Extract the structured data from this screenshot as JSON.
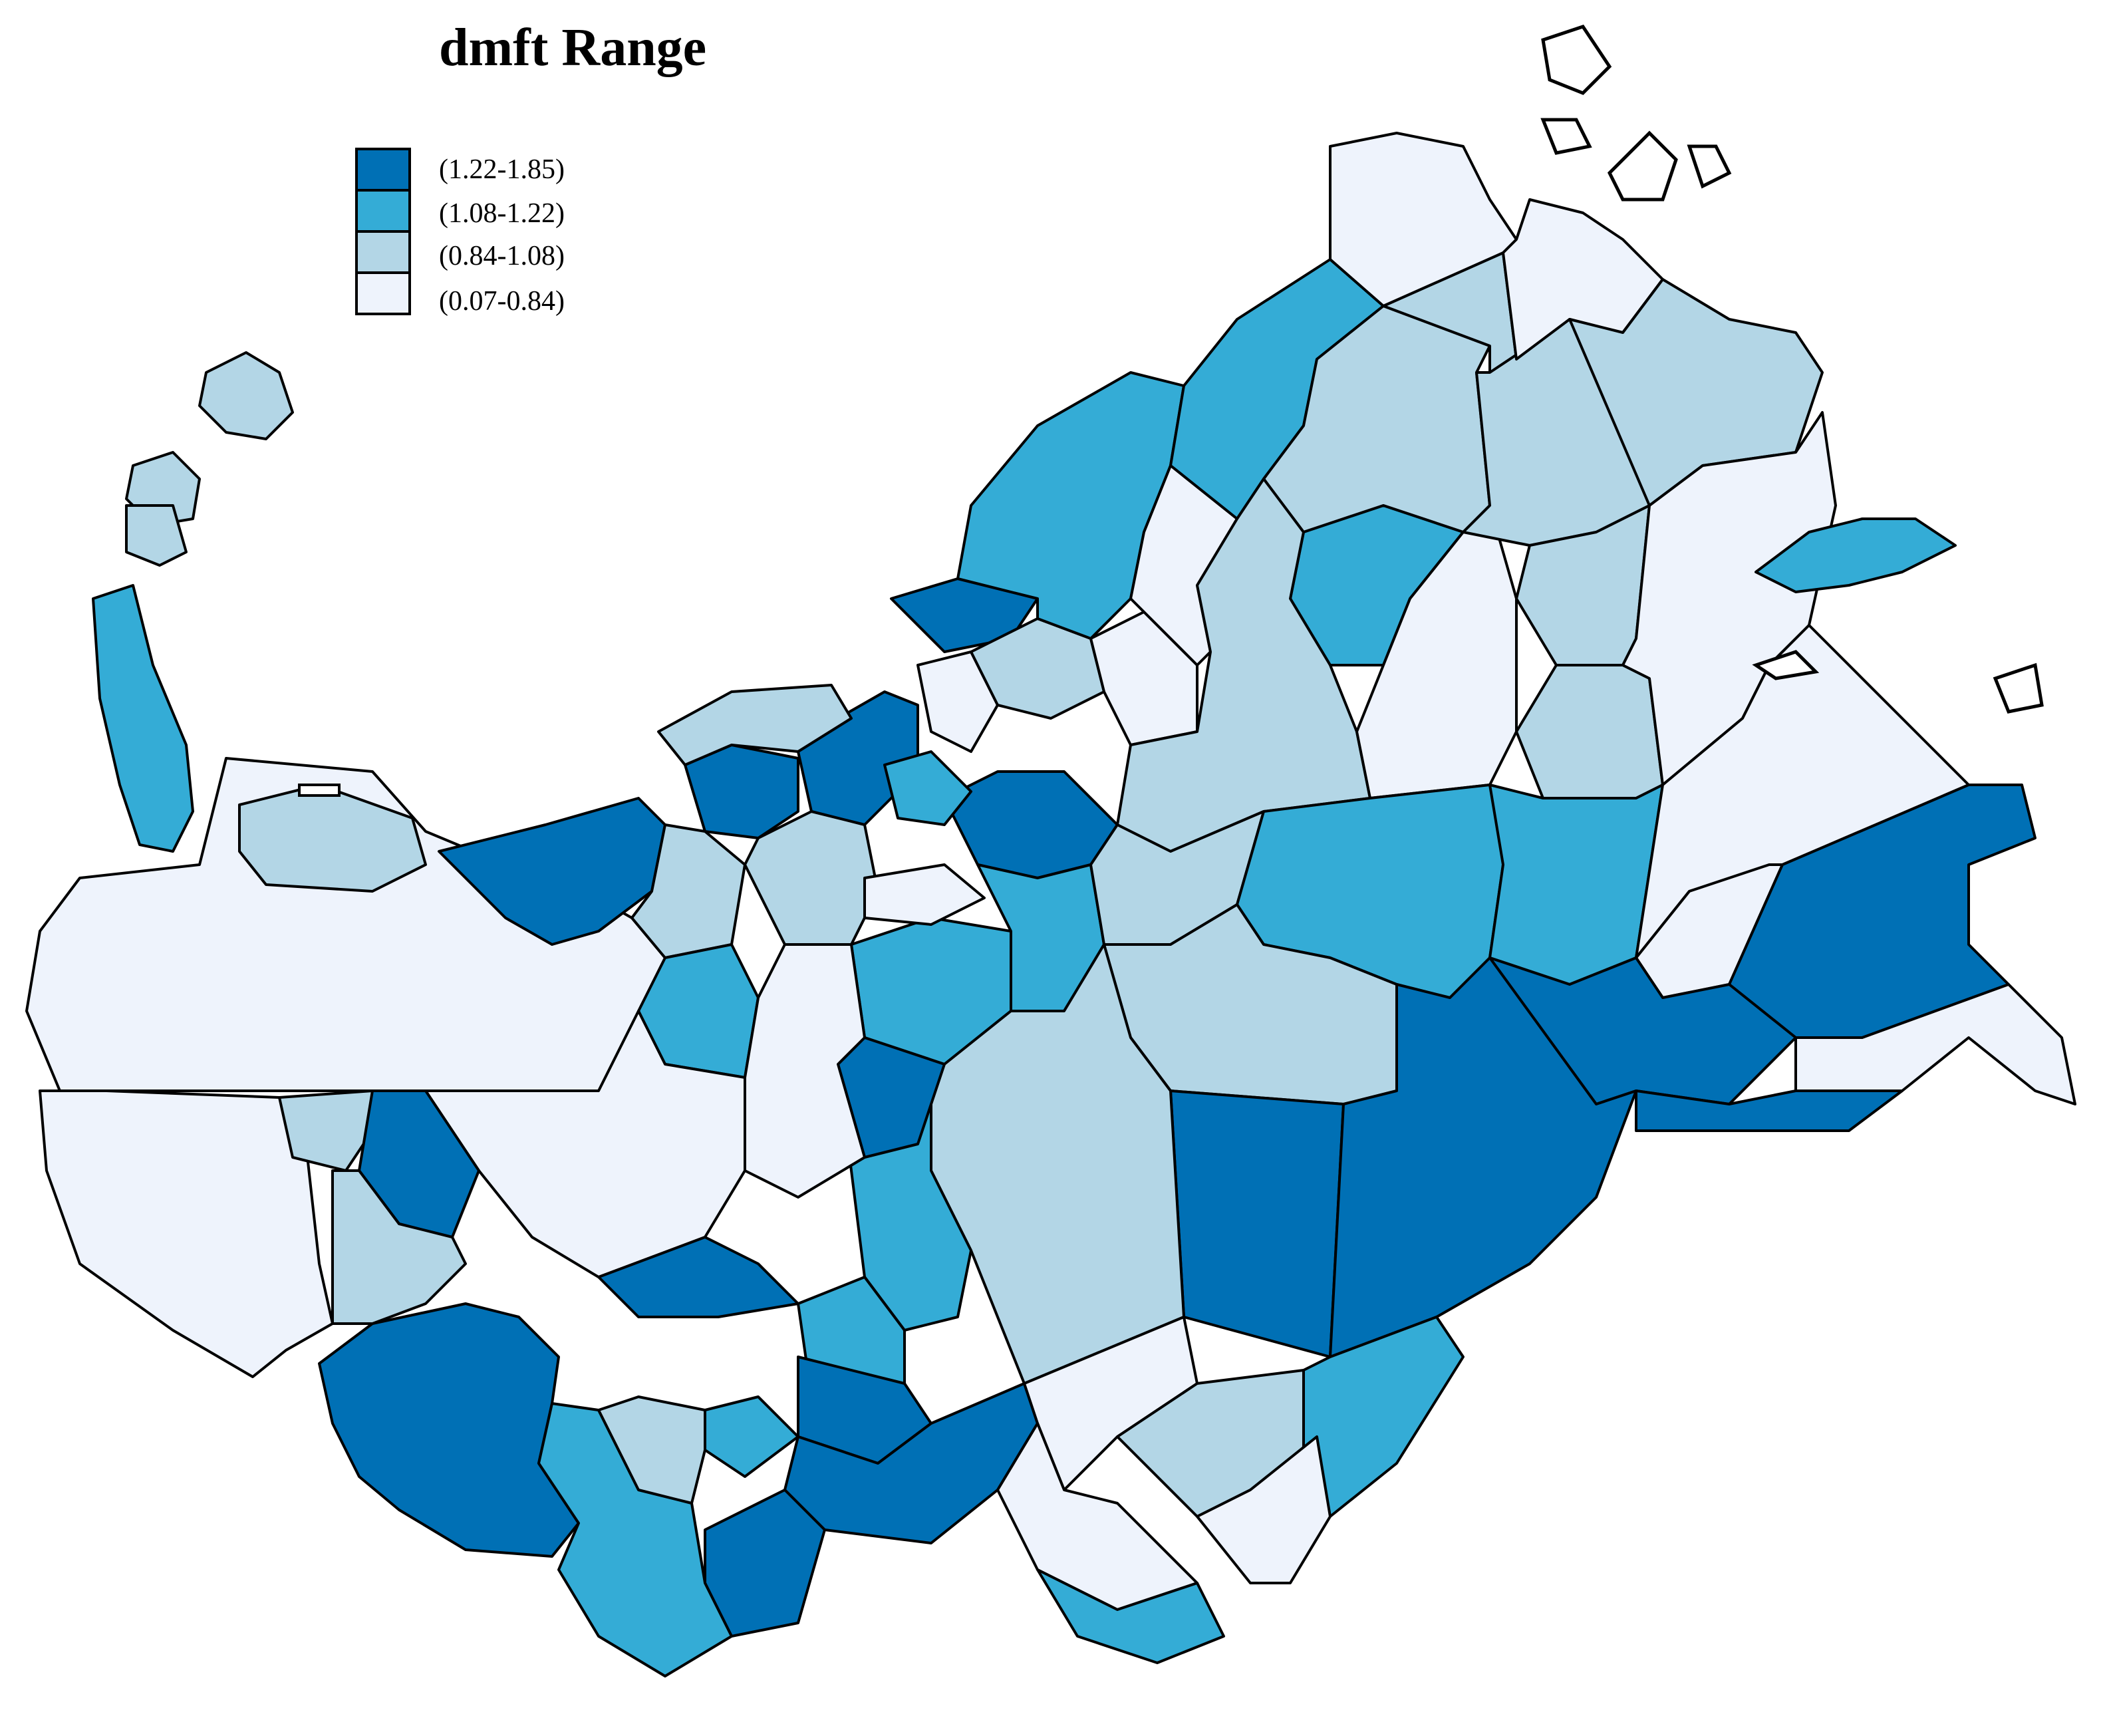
{
  "title": "dmft Range",
  "legend": {
    "items": [
      {
        "label": "(1.22-1.85)",
        "color": "#0070b5"
      },
      {
        "label": "(1.08-1.22)",
        "color": "#34acd6"
      },
      {
        "label": "(0.84-1.08)",
        "color": "#b3d6e6"
      },
      {
        "label": "(0.07-0.84)",
        "color": "#eef3fc"
      }
    ]
  },
  "map": {
    "border_color": "#000000",
    "background": "#ffffff"
  }
}
